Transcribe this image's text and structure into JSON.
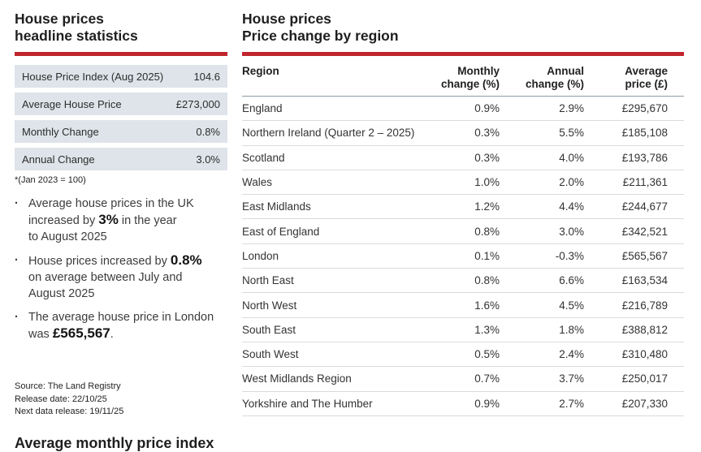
{
  "colors": {
    "accent_red": "#c0252e",
    "stat_row_bg": "#dee4e9"
  },
  "left_panel": {
    "title_line1": "House prices",
    "title_line2": "headline statistics",
    "stats": [
      {
        "label": "House Price Index (Aug 2025)",
        "value": "104.6"
      },
      {
        "label": "Average House Price",
        "value": "£273,000"
      },
      {
        "label": "Monthly Change",
        "value": "0.8%"
      },
      {
        "label": "Annual Change",
        "value": "3.0%"
      }
    ],
    "footnote": "*(Jan 2023 = 100)",
    "bullets": [
      {
        "pre": "Average house prices in the UK\nincreased by ",
        "highlight": "3%",
        "post": " in the year\nto August 2025"
      },
      {
        "pre": "House prices increased by ",
        "highlight": "0.8%",
        "post": "\non average between July and\nAugust 2025"
      },
      {
        "pre": "The average house price in London\nwas ",
        "highlight": "£565,567",
        "post": "."
      }
    ],
    "source_lines": [
      "Source: The Land Registry",
      "Release date: 22/10/25",
      "Next data release: 19/11/25"
    ],
    "next_section_title": "Average monthly price index"
  },
  "right_panel": {
    "title_line1": "House prices",
    "title_line2": "Price change by region",
    "table": {
      "header": {
        "region": "Region",
        "monthly_line1": "Monthly",
        "monthly_line2": "change (%)",
        "annual_line1": "Annual",
        "annual_line2": "change (%)",
        "price_line1": "Average",
        "price_line2": "price (£)"
      },
      "rows": [
        {
          "region": "England",
          "monthly": "0.9%",
          "annual": "2.9%",
          "price": "£295,670"
        },
        {
          "region": "Northern Ireland (Quarter 2 – 2025)",
          "monthly": "0.3%",
          "annual": "5.5%",
          "price": "£185,108"
        },
        {
          "region": "Scotland",
          "monthly": "0.3%",
          "annual": "4.0%",
          "price": "£193,786"
        },
        {
          "region": "Wales",
          "monthly": "1.0%",
          "annual": "2.0%",
          "price": "£211,361"
        },
        {
          "region": "East Midlands",
          "monthly": "1.2%",
          "annual": "4.4%",
          "price": "£244,677"
        },
        {
          "region": "East of England",
          "monthly": "0.8%",
          "annual": "3.0%",
          "price": "£342,521"
        },
        {
          "region": "London",
          "monthly": "0.1%",
          "annual": "-0.3%",
          "price": "£565,567"
        },
        {
          "region": "North East",
          "monthly": "0.8%",
          "annual": "6.6%",
          "price": "£163,534"
        },
        {
          "region": "North West",
          "monthly": "1.6%",
          "annual": "4.5%",
          "price": "£216,789"
        },
        {
          "region": "South East",
          "monthly": "1.3%",
          "annual": "1.8%",
          "price": "£388,812"
        },
        {
          "region": "South West",
          "monthly": "0.5%",
          "annual": "2.4%",
          "price": "£310,480"
        },
        {
          "region": "West Midlands Region",
          "monthly": "0.7%",
          "annual": "3.7%",
          "price": "£250,017"
        },
        {
          "region": "Yorkshire and The Humber",
          "monthly": "0.9%",
          "annual": "2.7%",
          "price": "£207,330"
        }
      ]
    }
  }
}
